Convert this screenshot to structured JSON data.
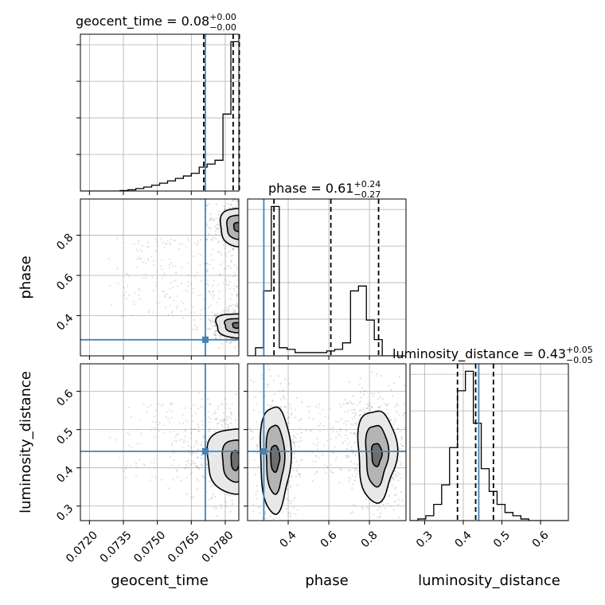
{
  "chart_data": {
    "type": "corner",
    "colors": {
      "truth": "#4682b4",
      "hist": "#000000",
      "quantile": "#000000",
      "samples": "#888888",
      "fill_levels": [
        "#e8e8e8",
        "#b4b4b4",
        "#6e6e6e"
      ],
      "grid": "#b0b0b0"
    },
    "parameters": [
      {
        "name": "geocent_time",
        "title_main": "geocent_time = 0.08",
        "title_plus": "+0.00",
        "title_minus": "−0.00",
        "range": [
          0.0716,
          0.0786
        ],
        "ticks": [
          {
            "v": 0.072,
            "label": "0.0720"
          },
          {
            "v": 0.0735,
            "label": "0.0735"
          },
          {
            "v": 0.075,
            "label": "0.0750"
          },
          {
            "v": 0.0765,
            "label": "0.0765"
          },
          {
            "v": 0.078,
            "label": "0.0780"
          }
        ],
        "truth": 0.07712,
        "quantiles": [
          0.07705,
          0.07835,
          0.07862
        ],
        "hist_edges_start": 0.0716,
        "hist_bin_width": 0.00035,
        "hist_counts": [
          0,
          0,
          0,
          0,
          0,
          0.3,
          0.8,
          1.6,
          2.6,
          3.8,
          5.1,
          6.6,
          8.2,
          9.8,
          11.5,
          15.5,
          17.5,
          20.0,
          50.0,
          97.0
        ]
      },
      {
        "name": "phase",
        "title_main": "phase = 0.61",
        "title_plus": "+0.24",
        "title_minus": "−0.27",
        "range": [
          0.2,
          0.98
        ],
        "ticks": [
          {
            "v": 0.4,
            "label": "0.4"
          },
          {
            "v": 0.6,
            "label": "0.6"
          },
          {
            "v": 0.8,
            "label": "0.8"
          }
        ],
        "truth": 0.28,
        "quantiles": [
          0.33,
          0.61,
          0.845
        ],
        "hist_edges_start": 0.2,
        "hist_bin_width": 0.039,
        "hist_counts": [
          0,
          5,
          40,
          92,
          5,
          4,
          2,
          2,
          2,
          2,
          3,
          4,
          8,
          40,
          43,
          22,
          10,
          0,
          0,
          0
        ]
      },
      {
        "name": "luminosity_distance",
        "title_main": "luminosity_distance = 0.43",
        "title_plus": "+0.05",
        "title_minus": "−0.05",
        "range": [
          0.262,
          0.672
        ],
        "ticks": [
          {
            "v": 0.3,
            "label": "0.3"
          },
          {
            "v": 0.4,
            "label": "0.4"
          },
          {
            "v": 0.5,
            "label": "0.5"
          },
          {
            "v": 0.6,
            "label": "0.6"
          }
        ],
        "truth": 0.44,
        "quantiles": [
          0.385,
          0.432,
          0.478
        ],
        "hist_edges_start": 0.262,
        "hist_bin_width": 0.0205,
        "hist_counts": [
          0,
          1,
          3,
          10,
          22,
          45,
          80,
          92,
          60,
          32,
          18,
          10,
          5,
          3,
          1,
          0,
          0,
          0,
          0,
          0
        ]
      }
    ],
    "pairs": [
      {
        "x": "geocent_time",
        "y": "phase",
        "truth": [
          0.07712,
          0.28
        ],
        "modes": [
          {
            "center": [
              0.07855,
              0.842
            ],
            "rings": [
              [
                0.0008,
                0.095
              ],
              [
                0.0005,
                0.06
              ],
              [
                0.00018,
                0.022
              ]
            ]
          },
          {
            "center": [
              0.0785,
              0.352
            ],
            "rings": [
              [
                0.00095,
                0.06
              ],
              [
                0.00055,
                0.035
              ],
              [
                0.00018,
                0.014
              ]
            ]
          }
        ]
      },
      {
        "x": "geocent_time",
        "y": "luminosity_distance",
        "truth": [
          0.07712,
          0.443
        ],
        "modes": [
          {
            "center": [
              0.07845,
              0.42
            ],
            "rings": [
              [
                0.0013,
                0.085
              ],
              [
                0.0006,
                0.055
              ],
              [
                0.0002,
                0.026
              ]
            ]
          }
        ]
      },
      {
        "x": "phase",
        "y": "luminosity_distance",
        "truth": [
          0.28,
          0.443
        ],
        "modes": [
          {
            "center": [
              0.335,
              0.425
            ],
            "rings": [
              [
                0.075,
                0.14
              ],
              [
                0.045,
                0.09
              ],
              [
                0.022,
                0.035
              ]
            ]
          },
          {
            "center": [
              0.835,
              0.435
            ],
            "rings": [
              [
                0.095,
                0.12
              ],
              [
                0.055,
                0.08
              ],
              [
                0.025,
                0.03
              ]
            ]
          }
        ]
      }
    ]
  }
}
